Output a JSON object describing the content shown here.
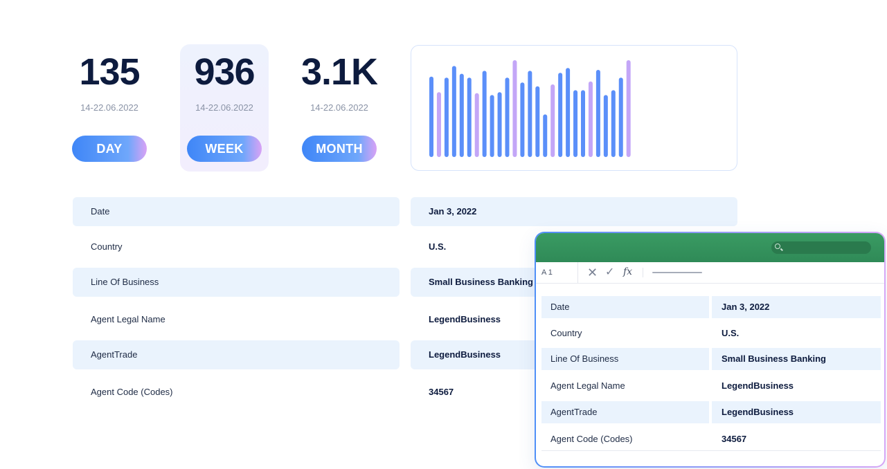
{
  "stats": [
    {
      "value": "135",
      "range": "14-22.06.2022",
      "label": "DAY"
    },
    {
      "value": "936",
      "range": "14-22.06.2022",
      "label": "WEEK"
    },
    {
      "value": "3.1K",
      "range": "14-22.06.2022",
      "label": "MONTH"
    }
  ],
  "colors": {
    "bar_blue": "#5b8ff9",
    "bar_purple": "#c3a6f7",
    "sheet_green": "#36955f",
    "row_shade": "#eaf3fd",
    "text_dark": "#0d1b3e"
  },
  "chart_data": {
    "type": "bar",
    "values": [
      0.83,
      0.67,
      0.82,
      0.94,
      0.86,
      0.82,
      0.66,
      0.89,
      0.64,
      0.67,
      0.82,
      1.0,
      0.77,
      0.89,
      0.73,
      0.44,
      0.75,
      0.87,
      0.92,
      0.69,
      0.69,
      0.78,
      0.9,
      0.64,
      0.69,
      0.82,
      1.0
    ],
    "highlight": [
      false,
      true,
      false,
      false,
      false,
      false,
      true,
      false,
      false,
      false,
      false,
      true,
      false,
      false,
      false,
      false,
      true,
      false,
      false,
      false,
      false,
      true,
      false,
      false,
      false,
      false,
      true
    ],
    "grid": false
  },
  "details": [
    {
      "label": "Date",
      "value": "Jan 3, 2022"
    },
    {
      "label": "Country",
      "value": "U.S."
    },
    {
      "label": "Line Of Business",
      "value": "Small Business Banking"
    },
    {
      "label": "Agent Legal Name",
      "value": "LegendBusiness"
    },
    {
      "label": "AgentTrade",
      "value": "LegendBusiness"
    },
    {
      "label": "Agent Code (Codes)",
      "value": "34567"
    }
  ],
  "sheet": {
    "cell_ref": "A 1",
    "fx": "fx",
    "rows": [
      {
        "label": "Date",
        "value": "Jan 3, 2022"
      },
      {
        "label": "Country",
        "value": "U.S."
      },
      {
        "label": "Line Of Business",
        "value": "Small Business Banking"
      },
      {
        "label": "Agent Legal Name",
        "value": "LegendBusiness"
      },
      {
        "label": "AgentTrade",
        "value": "LegendBusiness"
      },
      {
        "label": "Agent Code (Codes)",
        "value": "34567"
      }
    ]
  }
}
